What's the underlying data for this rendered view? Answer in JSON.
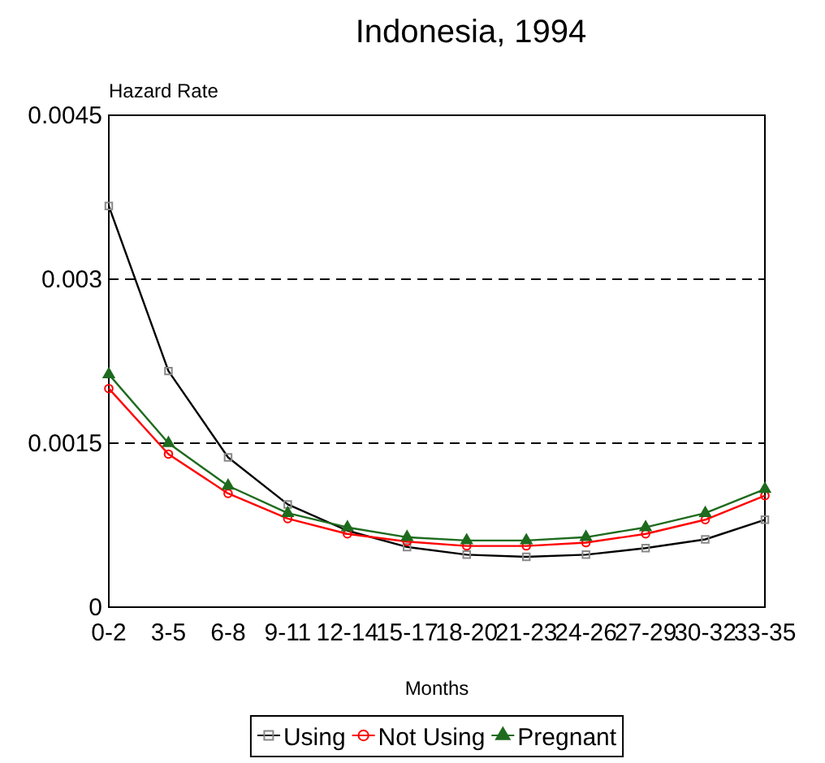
{
  "chart_data": {
    "type": "line",
    "title": "Indonesia, 1994",
    "xlabel": "Months",
    "ylabel": "Hazard Rate",
    "categories": [
      "0-2",
      "3-5",
      "6-8",
      "9-11",
      "12-14",
      "15-17",
      "18-20",
      "21-23",
      "24-26",
      "27-29",
      "30-32",
      "33-35"
    ],
    "series": [
      {
        "name": "Using",
        "color": "#000000",
        "marker": "square",
        "values": [
          0.00367,
          0.00216,
          0.00137,
          0.00094,
          0.0007,
          0.00055,
          0.00048,
          0.00046,
          0.00048,
          0.00054,
          0.00062,
          0.0008
        ]
      },
      {
        "name": "Not Using",
        "color": "#ff0000",
        "marker": "circle",
        "values": [
          0.002,
          0.0014,
          0.00104,
          0.00081,
          0.00067,
          0.0006,
          0.00056,
          0.00056,
          0.00059,
          0.00067,
          0.0008,
          0.00102
        ]
      },
      {
        "name": "Pregnant",
        "color": "#1e6b1e",
        "marker": "triangle",
        "values": [
          0.00213,
          0.0015,
          0.00111,
          0.00086,
          0.00073,
          0.00064,
          0.00061,
          0.00061,
          0.00064,
          0.00073,
          0.00086,
          0.00108
        ]
      }
    ],
    "ylim": [
      0,
      0.0045
    ],
    "yticks": [
      0,
      0.0015,
      0.003,
      0.0045
    ],
    "grid": "y",
    "legend": "bottom"
  }
}
